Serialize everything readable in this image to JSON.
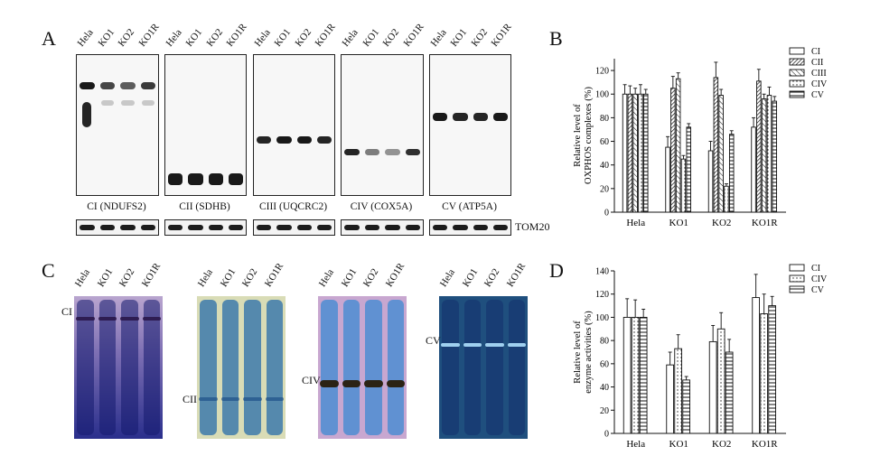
{
  "panels": {
    "a": "A",
    "b": "B",
    "c": "C",
    "d": "D"
  },
  "lanes": [
    "Hela",
    "KO1",
    "KO2",
    "KO1R"
  ],
  "western": {
    "captions": [
      "CI (NDUFS2)",
      "CII (SDHB)",
      "CIII (UQCRC2)",
      "CIV (COX5A)",
      "CV (ATP5A)"
    ],
    "loading_control": "TOM20"
  },
  "gels": {
    "labels": [
      "CI",
      "CII",
      "CIV",
      "CV"
    ]
  },
  "colors": {
    "blot_bg": "#f7f7f7",
    "band": "#1c1c1c",
    "gel1_top": "#b9a5cf",
    "gel1_mid": "#7d6fb3",
    "gel1_bottom": "#2a2f8c",
    "gel2_bg": "#d9dcb6",
    "gel2_lane": "#3f7fae",
    "gel3_bg": "#c8a7d0",
    "gel3_lane": "#5b8fd0",
    "gel4_bg": "#1f4f7e",
    "gel4_band": "#9fd0ef"
  },
  "chart_data": [
    {
      "type": "bar",
      "categories": [
        "Hela",
        "KO1",
        "KO2",
        "KO1R"
      ],
      "ylabel": "Relative level of OXPHOS complexes (%)",
      "ylabel_lines": [
        "Relative level of",
        "OXPHOS complexes (%)"
      ],
      "ylim": [
        0,
        130
      ],
      "yticks": [
        0,
        20,
        40,
        60,
        80,
        100,
        120
      ],
      "legend_position": "top-right",
      "series": [
        {
          "name": "CI",
          "pattern": "blank",
          "values": [
            100,
            55,
            52,
            72
          ],
          "errors": [
            8,
            9,
            8,
            8
          ]
        },
        {
          "name": "CII",
          "pattern": "diag-dense",
          "values": [
            100,
            105,
            114,
            111
          ],
          "errors": [
            7,
            10,
            13,
            10
          ]
        },
        {
          "name": "CIII",
          "pattern": "diag-sparse",
          "values": [
            100,
            113,
            99,
            96
          ],
          "errors": [
            5,
            5,
            5,
            4
          ]
        },
        {
          "name": "CIV",
          "pattern": "dots",
          "values": [
            100,
            45,
            22,
            99
          ],
          "errors": [
            8,
            3,
            2,
            7
          ]
        },
        {
          "name": "CV",
          "pattern": "horiz",
          "values": [
            100,
            72,
            66,
            94
          ],
          "errors": [
            4,
            3,
            3,
            4
          ]
        }
      ]
    },
    {
      "type": "bar",
      "categories": [
        "Hela",
        "KO1",
        "KO2",
        "KO1R"
      ],
      "ylabel": "Relative level of enzyme activities (%)",
      "ylabel_lines": [
        "Relative level of",
        "enzyme activities (%)"
      ],
      "ylim": [
        0,
        140
      ],
      "yticks": [
        0,
        20,
        40,
        60,
        80,
        100,
        120,
        140
      ],
      "legend_position": "top-right",
      "series": [
        {
          "name": "CI",
          "pattern": "blank",
          "values": [
            100,
            59,
            79,
            117
          ],
          "errors": [
            16,
            11,
            14,
            20
          ]
        },
        {
          "name": "CIV",
          "pattern": "dots",
          "values": [
            100,
            73,
            90,
            103
          ],
          "errors": [
            15,
            12,
            14,
            17
          ]
        },
        {
          "name": "CV",
          "pattern": "horiz",
          "values": [
            100,
            46,
            70,
            110
          ],
          "errors": [
            7,
            3,
            11,
            8
          ]
        }
      ]
    }
  ]
}
